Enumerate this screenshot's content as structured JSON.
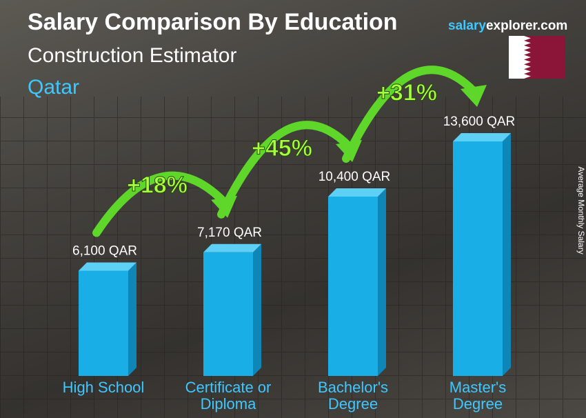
{
  "chart_data": {
    "type": "bar",
    "title": "Salary Comparison By Education",
    "subtitle": "Construction Estimator",
    "location": "Qatar",
    "brand": {
      "salary": "salary",
      "explorer": "explorer.com"
    },
    "y_axis_label": "Average Monthly Salary",
    "categories": [
      "High School",
      "Certificate or Diploma",
      "Bachelor's Degree",
      "Master's Degree"
    ],
    "values": [
      6100,
      7170,
      10400,
      13600
    ],
    "value_labels": [
      "6,100 QAR",
      "7,170 QAR",
      "10,400 QAR",
      "13,600 QAR"
    ],
    "increases": [
      "+18%",
      "+45%",
      "+31%"
    ],
    "color": "#1aaee6",
    "ylim": [
      0,
      15000
    ]
  }
}
